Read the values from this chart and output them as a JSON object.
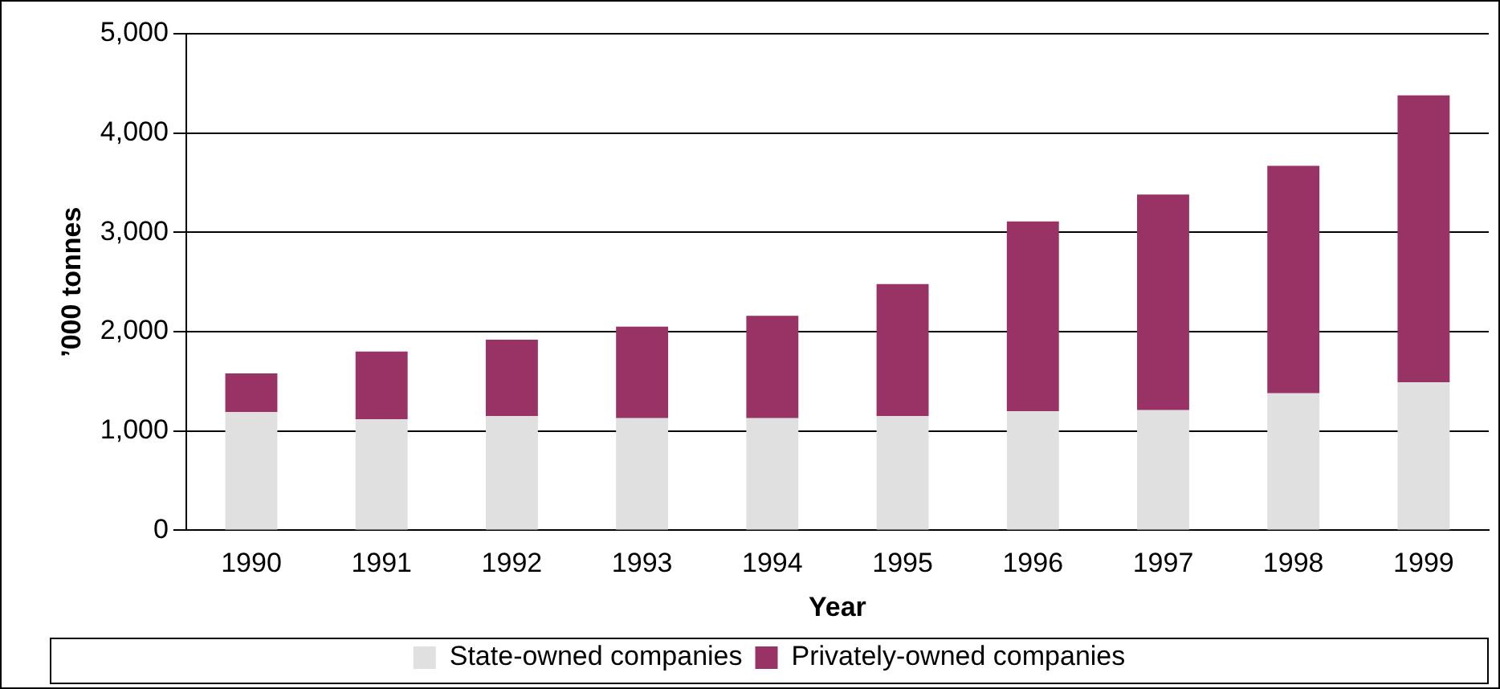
{
  "chart_data": {
    "type": "bar",
    "xlabel": "Year",
    "ylabel": "’000 tonnes",
    "categories": [
      "1990",
      "1991",
      "1992",
      "1993",
      "1994",
      "1995",
      "1996",
      "1997",
      "1998",
      "1999"
    ],
    "stacked": true,
    "ylim": [
      0,
      5000
    ],
    "yticks": [
      {
        "value": 0,
        "label": "0"
      },
      {
        "value": 1000,
        "label": "1,000"
      },
      {
        "value": 2000,
        "label": "2,000"
      },
      {
        "value": 3000,
        "label": "3,000"
      },
      {
        "value": 4000,
        "label": "4,000"
      },
      {
        "value": 5000,
        "label": "5,000"
      }
    ],
    "grid": "y",
    "legend": "bottom",
    "series": [
      {
        "name": "State-owned companies",
        "color": "#e0e0e0",
        "values": [
          1190,
          1120,
          1150,
          1130,
          1130,
          1150,
          1200,
          1210,
          1380,
          1490
        ]
      },
      {
        "name": "Privately-owned companies",
        "color": "#993366",
        "values": [
          390,
          680,
          770,
          920,
          1030,
          1330,
          1910,
          2170,
          2290,
          2890
        ]
      }
    ]
  }
}
